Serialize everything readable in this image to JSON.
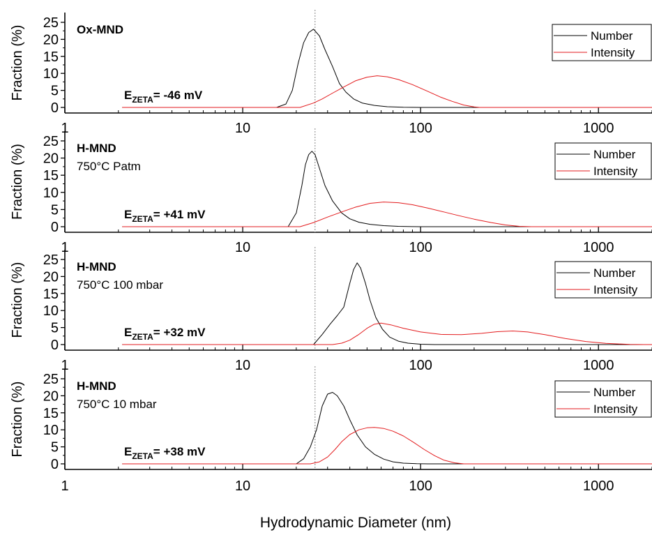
{
  "figure": {
    "y_axis_label": "Fraction (%)",
    "x_axis_label": "Hydrodynamic Diameter (nm)",
    "legend_number": "Number",
    "legend_intensity": "Intensity",
    "zeta_prefix": "E",
    "zeta_subscript": "ZETA",
    "colors": {
      "number": "#000000",
      "intensity": "#e31a1c",
      "reference_line": "#9a9a9a"
    }
  },
  "chart_data": [
    {
      "type": "line",
      "title": "Ox-MND",
      "subtitle": "",
      "zeta": "= -46 mV",
      "xscale": "log",
      "xlim": [
        2.1,
        2000
      ],
      "ylim": [
        -2,
        25
      ],
      "y_ticks": [
        0,
        5,
        10,
        15,
        20,
        25
      ],
      "x_ticks": [
        1,
        10,
        100,
        1000
      ],
      "x_tick_labels": [
        "1",
        "10",
        "100",
        "1000"
      ],
      "reference_line_x": 25.5,
      "legend_position": "top-right",
      "series": [
        {
          "name": "Number",
          "x": [
            15.5,
            17.5,
            19,
            20.5,
            22,
            23.5,
            25,
            27,
            29,
            32,
            35,
            38,
            42,
            47,
            55,
            65,
            80,
            100
          ],
          "y": [
            0,
            1,
            5,
            13,
            19,
            22,
            23,
            21,
            17,
            12,
            7,
            4.5,
            2.5,
            1.3,
            0.6,
            0.2,
            0.05,
            0
          ]
        },
        {
          "name": "Intensity",
          "x": [
            21,
            25,
            28,
            32,
            37,
            43,
            50,
            57,
            65,
            75,
            90,
            110,
            130,
            150,
            175,
            200,
            215
          ],
          "y": [
            0,
            1.3,
            2.5,
            4.2,
            6,
            7.8,
            8.9,
            9.3,
            9,
            8.2,
            6.7,
            4.7,
            3,
            1.8,
            0.7,
            0.15,
            0
          ]
        }
      ]
    },
    {
      "type": "line",
      "title": "H-MND",
      "subtitle": "750°C Patm",
      "zeta": "= +41 mV",
      "xscale": "log",
      "xlim": [
        2.1,
        2000
      ],
      "ylim": [
        -2,
        25
      ],
      "y_ticks": [
        0,
        5,
        10,
        15,
        20,
        25
      ],
      "x_ticks": [
        1,
        10,
        100,
        1000
      ],
      "x_tick_labels": [
        "1",
        "10",
        "100",
        "1000"
      ],
      "reference_line_x": 25.5,
      "legend_position": "top-right",
      "series": [
        {
          "name": "Number",
          "x": [
            18,
            20,
            21.5,
            22.5,
            23.5,
            24.5,
            25.5,
            27,
            29,
            32,
            36,
            40,
            45,
            52,
            62,
            75,
            90,
            100
          ],
          "y": [
            0,
            4,
            12,
            18,
            21,
            22,
            21,
            17,
            12,
            7.5,
            4,
            2.3,
            1.3,
            0.7,
            0.3,
            0.1,
            0.03,
            0
          ]
        },
        {
          "name": "Intensity",
          "x": [
            21,
            25,
            30,
            36,
            43,
            52,
            62,
            75,
            90,
            110,
            135,
            165,
            200,
            250,
            300,
            360,
            420
          ],
          "y": [
            0,
            1.2,
            2.8,
            4.3,
            5.7,
            6.8,
            7.2,
            7,
            6.4,
            5.4,
            4.3,
            3.2,
            2.2,
            1.2,
            0.5,
            0.1,
            0
          ]
        }
      ]
    },
    {
      "type": "line",
      "title": "H-MND",
      "subtitle": "750°C 100 mbar",
      "zeta": "= +32 mV",
      "xscale": "log",
      "xlim": [
        2.1,
        2000
      ],
      "ylim": [
        -2,
        25
      ],
      "y_ticks": [
        0,
        5,
        10,
        15,
        20,
        25
      ],
      "x_ticks": [
        1,
        10,
        100,
        1000
      ],
      "x_tick_labels": [
        "1",
        "10",
        "100",
        "1000"
      ],
      "reference_line_x": 25.5,
      "legend_position": "top-right",
      "series": [
        {
          "name": "Number",
          "x": [
            25,
            28,
            31,
            34,
            37,
            40,
            42,
            44,
            46,
            49,
            52,
            56,
            61,
            67,
            75,
            85,
            100,
            120
          ],
          "y": [
            0,
            3,
            6,
            8.5,
            11,
            18,
            22,
            24,
            22.5,
            18,
            13,
            8,
            4.5,
            2.2,
            1,
            0.4,
            0.1,
            0
          ]
        },
        {
          "name": "Intensity",
          "x": [
            32,
            36,
            40,
            45,
            50,
            55,
            60,
            68,
            80,
            100,
            130,
            170,
            220,
            270,
            330,
            400,
            500,
            650,
            850,
            1100,
            1500,
            1800
          ],
          "y": [
            0,
            0.4,
            1.3,
            3,
            4.8,
            6,
            6.3,
            5.8,
            4.8,
            3.7,
            3,
            2.9,
            3.3,
            3.8,
            4,
            3.7,
            2.9,
            1.8,
            0.9,
            0.35,
            0.05,
            0
          ]
        }
      ]
    },
    {
      "type": "line",
      "title": "H-MND",
      "subtitle": "750°C 10 mbar",
      "zeta": "= +38 mV",
      "xscale": "log",
      "xlim": [
        2.1,
        2000
      ],
      "ylim": [
        -2,
        25
      ],
      "y_ticks": [
        0,
        5,
        10,
        15,
        20,
        25
      ],
      "x_ticks": [
        1,
        10,
        100,
        1000
      ],
      "x_tick_labels": [
        "1",
        "10",
        "100",
        "1000"
      ],
      "reference_line_x": 25.5,
      "legend_position": "top-right",
      "series": [
        {
          "name": "Number",
          "x": [
            20,
            22,
            24,
            26,
            28,
            30,
            32,
            34,
            37,
            40,
            44,
            49,
            55,
            62,
            70,
            80,
            95,
            110
          ],
          "y": [
            0,
            1.5,
            5,
            10,
            17,
            20.5,
            21,
            20,
            17,
            13,
            8.5,
            5,
            2.8,
            1.4,
            0.6,
            0.2,
            0.05,
            0
          ]
        },
        {
          "name": "Intensity",
          "x": [
            24,
            27,
            30,
            33,
            36,
            40,
            45,
            50,
            55,
            62,
            70,
            80,
            92,
            105,
            120,
            135,
            155,
            175
          ],
          "y": [
            0,
            0.6,
            2,
            4.2,
            6.5,
            8.6,
            10,
            10.6,
            10.7,
            10.4,
            9.6,
            8.2,
            6.2,
            4.2,
            2.4,
            1.1,
            0.3,
            0
          ]
        }
      ]
    }
  ]
}
